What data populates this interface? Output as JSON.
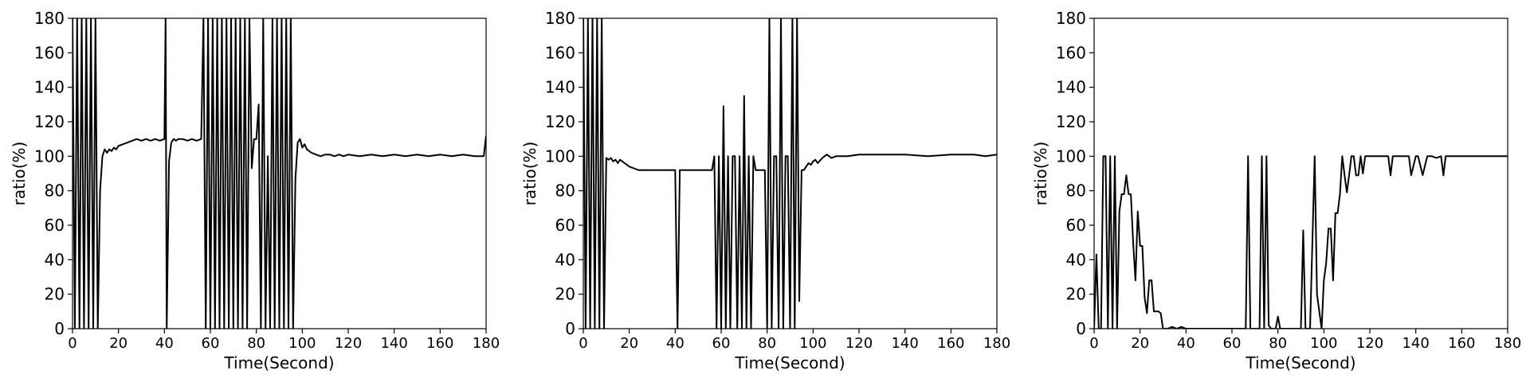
{
  "chart_data": [
    {
      "type": "line",
      "xlabel": "Time(Second)",
      "ylabel": "ratio(%)",
      "xlim": [
        0,
        180
      ],
      "ylim": [
        0,
        180
      ],
      "xticks": [
        0,
        20,
        40,
        60,
        80,
        100,
        120,
        140,
        160,
        180
      ],
      "yticks": [
        0,
        20,
        40,
        60,
        80,
        100,
        120,
        140,
        160,
        180
      ],
      "grid": false,
      "line_color": "#000000",
      "series": [
        {
          "x": [
            0,
            1,
            2,
            3,
            4,
            5,
            6,
            7,
            8,
            9,
            10,
            11,
            12,
            13,
            14,
            15,
            16,
            17,
            18,
            19,
            20,
            22,
            24,
            26,
            28,
            30,
            32,
            34,
            36,
            38,
            40,
            40.5,
            41,
            42,
            43,
            44,
            45,
            46,
            48,
            50,
            52,
            54,
            56,
            57,
            58,
            59,
            60,
            61,
            62,
            63,
            64,
            65,
            66,
            67,
            68,
            69,
            70,
            71,
            72,
            73,
            74,
            75,
            76,
            77,
            78,
            79,
            80,
            81,
            82,
            83,
            84,
            85,
            86,
            87,
            88,
            89,
            90,
            91,
            92,
            93,
            94,
            95,
            96,
            97,
            98,
            99,
            100,
            101,
            102,
            104,
            106,
            108,
            110,
            112,
            114,
            116,
            118,
            120,
            125,
            130,
            135,
            140,
            145,
            150,
            155,
            160,
            165,
            170,
            175,
            178,
            179,
            180
          ],
          "y": [
            180,
            0,
            180,
            0,
            180,
            0,
            180,
            0,
            180,
            0,
            180,
            0,
            80,
            100,
            104,
            102,
            104,
            103,
            105,
            104,
            106,
            107,
            108,
            109,
            110,
            109,
            110,
            109,
            110,
            109,
            110,
            180,
            0,
            97,
            108,
            110,
            109,
            110,
            110,
            109,
            110,
            109,
            110,
            180,
            0,
            180,
            0,
            180,
            0,
            180,
            0,
            180,
            0,
            180,
            0,
            180,
            0,
            180,
            0,
            180,
            0,
            180,
            0,
            180,
            93,
            110,
            110,
            130,
            0,
            180,
            0,
            100,
            0,
            180,
            0,
            180,
            0,
            180,
            0,
            180,
            0,
            180,
            0,
            87,
            108,
            110,
            105,
            107,
            104,
            102,
            101,
            100,
            101,
            101,
            100,
            101,
            100,
            101,
            100,
            101,
            100,
            101,
            100,
            101,
            100,
            101,
            100,
            101,
            100,
            100,
            100,
            112
          ]
        }
      ]
    },
    {
      "type": "line",
      "xlabel": "Time(Second)",
      "ylabel": "ratio(%)",
      "xlim": [
        0,
        180
      ],
      "ylim": [
        0,
        180
      ],
      "xticks": [
        0,
        20,
        40,
        60,
        80,
        100,
        120,
        140,
        160,
        180
      ],
      "yticks": [
        0,
        20,
        40,
        60,
        80,
        100,
        120,
        140,
        160,
        180
      ],
      "grid": false,
      "line_color": "#000000",
      "series": [
        {
          "x": [
            0,
            1,
            2,
            3,
            4,
            5,
            6,
            7,
            8,
            9,
            10,
            11,
            12,
            13,
            14,
            15,
            16,
            18,
            20,
            22,
            24,
            26,
            28,
            30,
            32,
            34,
            36,
            38,
            40,
            41,
            42,
            43,
            44,
            46,
            48,
            50,
            52,
            54,
            56,
            57,
            58,
            59,
            60,
            61,
            62,
            63,
            64,
            65,
            66,
            67,
            68,
            69,
            70,
            71,
            72,
            73,
            74,
            75,
            76,
            77,
            78,
            79,
            80,
            81,
            82,
            83,
            84,
            85,
            86,
            87,
            88,
            89,
            90,
            91,
            92,
            93,
            94,
            95,
            96,
            97,
            98,
            99,
            100,
            101,
            102,
            104,
            106,
            108,
            110,
            115,
            120,
            130,
            140,
            150,
            160,
            170,
            175,
            180
          ],
          "y": [
            180,
            0,
            180,
            0,
            180,
            0,
            180,
            0,
            180,
            0,
            99,
            98,
            99,
            97,
            98,
            96,
            98,
            96,
            94,
            93,
            92,
            92,
            92,
            92,
            92,
            92,
            92,
            92,
            92,
            0,
            92,
            92,
            92,
            92,
            92,
            92,
            92,
            92,
            92,
            100,
            0,
            100,
            0,
            129,
            0,
            100,
            0,
            100,
            100,
            0,
            100,
            0,
            135,
            0,
            100,
            0,
            100,
            92,
            92,
            92,
            92,
            92,
            0,
            180,
            0,
            100,
            100,
            0,
            180,
            0,
            100,
            100,
            0,
            180,
            0,
            180,
            16,
            92,
            92,
            94,
            96,
            95,
            97,
            98,
            96,
            99,
            101,
            99,
            100,
            100,
            101,
            101,
            101,
            100,
            101,
            101,
            100,
            101
          ]
        }
      ]
    },
    {
      "type": "line",
      "xlabel": "Time(Second)",
      "ylabel": "ratio(%)",
      "xlim": [
        0,
        180
      ],
      "ylim": [
        0,
        180
      ],
      "xticks": [
        0,
        20,
        40,
        60,
        80,
        100,
        120,
        140,
        160,
        180
      ],
      "yticks": [
        0,
        20,
        40,
        60,
        80,
        100,
        120,
        140,
        160,
        180
      ],
      "grid": false,
      "line_color": "#000000",
      "series": [
        {
          "x": [
            0,
            1,
            2,
            3,
            4,
            5,
            6,
            7,
            8,
            9,
            10,
            11,
            12,
            13,
            14,
            15,
            16,
            17,
            18,
            19,
            20,
            21,
            22,
            23,
            24,
            25,
            26,
            27,
            28,
            29,
            30,
            32,
            34,
            36,
            38,
            40,
            45,
            50,
            55,
            60,
            65,
            66,
            67,
            68,
            70,
            72,
            73,
            74,
            75,
            76,
            77,
            78,
            79,
            80,
            81,
            82,
            84,
            86,
            88,
            90,
            91,
            92,
            94,
            96,
            97,
            98,
            99,
            100,
            101,
            102,
            103,
            104,
            105,
            106,
            107,
            108,
            109,
            110,
            111,
            112,
            113,
            114,
            115,
            116,
            117,
            118,
            119,
            120,
            125,
            128,
            129,
            130,
            135,
            137,
            138,
            140,
            141,
            143,
            145,
            147,
            149,
            151,
            152,
            153,
            155,
            160,
            165,
            170,
            175,
            180
          ],
          "y": [
            0,
            43,
            0,
            0,
            100,
            100,
            0,
            100,
            0,
            100,
            0,
            68,
            78,
            78,
            89,
            78,
            78,
            50,
            28,
            68,
            48,
            48,
            18,
            9,
            28,
            28,
            10,
            10,
            10,
            9,
            0,
            0,
            1,
            0,
            1,
            0,
            0,
            0,
            0,
            0,
            0,
            0,
            100,
            0,
            0,
            0,
            100,
            0,
            100,
            2,
            0,
            0,
            0,
            7,
            0,
            0,
            0,
            0,
            0,
            0,
            57,
            0,
            0,
            100,
            20,
            10,
            0,
            28,
            38,
            58,
            58,
            28,
            67,
            67,
            78,
            100,
            89,
            79,
            89,
            100,
            100,
            89,
            89,
            100,
            90,
            100,
            100,
            100,
            100,
            100,
            89,
            100,
            100,
            100,
            89,
            100,
            100,
            89,
            100,
            100,
            99,
            100,
            89,
            100,
            100,
            100,
            100,
            100,
            100,
            100
          ]
        }
      ]
    }
  ]
}
